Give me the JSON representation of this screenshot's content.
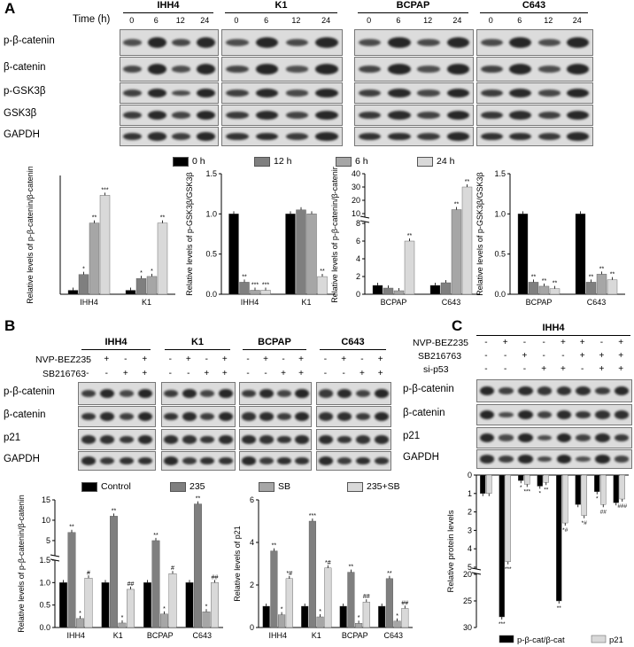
{
  "panelA": {
    "letter": "A",
    "time_label": "Time (h)",
    "cell_lines": [
      "IHH4",
      "K1",
      "BCPAP",
      "C643"
    ],
    "times": [
      "0",
      "6",
      "12",
      "24"
    ],
    "rows": [
      "p-β-catenin",
      "β-catenin",
      "p-GSK3β",
      "GSK3β",
      "GAPDH"
    ],
    "legend": [
      {
        "label": "0 h",
        "color": "#000000"
      },
      {
        "label": "12 h",
        "color": "#7f7f7f"
      },
      {
        "label": "6 h",
        "color": "#a6a6a6"
      },
      {
        "label": "24 h",
        "color": "#d9d9d9"
      }
    ]
  },
  "panelB": {
    "letter": "B",
    "cell_lines": [
      "IHH4",
      "K1",
      "BCPAP",
      "C643"
    ],
    "treat_rows": [
      {
        "label": "NVP-BEZ235",
        "signs": [
          "-",
          "+",
          "-",
          "+"
        ]
      },
      {
        "label": "SB216763",
        "signs": [
          "-",
          "-",
          "+",
          "+"
        ]
      }
    ],
    "rows": [
      "p-β-catenin",
      "β-catenin",
      "p21",
      "GAPDH"
    ],
    "legend": [
      {
        "label": "Control",
        "color": "#000000"
      },
      {
        "label": "235",
        "color": "#7f7f7f"
      },
      {
        "label": "SB",
        "color": "#a6a6a6"
      },
      {
        "label": "235+SB",
        "color": "#d9d9d9"
      }
    ]
  },
  "panelC": {
    "letter": "C",
    "cell_line": "IHH4",
    "treat_rows": [
      {
        "label": "NVP-BEZ235",
        "signs": [
          "-",
          "+",
          "-",
          "-",
          "+",
          "+",
          "-",
          "+"
        ]
      },
      {
        "label": "SB216763",
        "signs": [
          "-",
          "-",
          "+",
          "-",
          "-",
          "+",
          "+",
          "+"
        ]
      },
      {
        "label": "si-p53",
        "signs": [
          "-",
          "-",
          "-",
          "+",
          "+",
          "-",
          "+",
          "+"
        ]
      }
    ],
    "rows": [
      "p-β-catenin",
      "β-catenin",
      "p21",
      "GAPDH"
    ],
    "legend": [
      {
        "label": "p-β-cat/β-cat",
        "color": "#000000"
      },
      {
        "label": "p21",
        "color": "#d9d9d9"
      }
    ]
  },
  "chart_data": [
    {
      "id": "A1",
      "type": "bar",
      "ylabel": "Relative levels of p-β-catenin/β-catenin",
      "categories": [
        "IHH4",
        "K1"
      ],
      "series_colors": [
        "#000000",
        "#7f7f7f",
        "#a6a6a6",
        "#d9d9d9"
      ],
      "values": [
        [
          1,
          5,
          18,
          25
        ],
        [
          1,
          4,
          4.5,
          18
        ]
      ],
      "annotations": [
        [
          "",
          "*",
          "**",
          "***"
        ],
        [
          "",
          "*",
          "*",
          "**"
        ]
      ]
    },
    {
      "id": "A2",
      "type": "bar",
      "ylabel": "Relative levels of p-GSK3β/GSK3β",
      "ylim": [
        0.0,
        1.5
      ],
      "yticks": [
        "0.0",
        "0.5",
        "1.0",
        "1.5"
      ],
      "categories": [
        "IHH4",
        "K1"
      ],
      "series_colors": [
        "#000000",
        "#7f7f7f",
        "#a6a6a6",
        "#d9d9d9"
      ],
      "values": [
        [
          1.0,
          0.15,
          0.05,
          0.05
        ],
        [
          1.0,
          1.05,
          1.0,
          0.22
        ]
      ],
      "annotations": [
        [
          "",
          "**",
          "***",
          "***"
        ],
        [
          "",
          "",
          "",
          "**"
        ]
      ]
    },
    {
      "id": "A3",
      "type": "bar",
      "broken_axis": true,
      "ylabel": "Relative levels of p-β-catenin/β-catenin",
      "yticks_lower": [
        "0",
        "2",
        "4",
        "6",
        "8"
      ],
      "yticks_upper": [
        "10",
        "20",
        "30",
        "40"
      ],
      "categories": [
        "BCPAP",
        "C643"
      ],
      "series_colors": [
        "#000000",
        "#7f7f7f",
        "#a6a6a6",
        "#d9d9d9"
      ],
      "values": [
        [
          1,
          0.7,
          0.4,
          6
        ],
        [
          1,
          1.3,
          13,
          30
        ]
      ],
      "annotations": [
        [
          "",
          "",
          "",
          "**"
        ],
        [
          "",
          "",
          "**",
          "**"
        ]
      ]
    },
    {
      "id": "A4",
      "type": "bar",
      "ylabel": "Relative levels of p-GSK3β/GSK3β",
      "ylim": [
        0.0,
        1.5
      ],
      "yticks": [
        "0.0",
        "0.5",
        "1.0",
        "1.5"
      ],
      "categories": [
        "BCPAP",
        "C643"
      ],
      "series_colors": [
        "#000000",
        "#7f7f7f",
        "#a6a6a6",
        "#d9d9d9"
      ],
      "values": [
        [
          1.0,
          0.15,
          0.1,
          0.07
        ],
        [
          1.0,
          0.15,
          0.25,
          0.18
        ]
      ],
      "annotations": [
        [
          "",
          "**",
          "**",
          "**"
        ],
        [
          "",
          "**",
          "**",
          "**"
        ]
      ]
    },
    {
      "id": "B1",
      "type": "bar",
      "broken_axis": true,
      "ylabel": "Relative levels of p-β-catenin/β-catenin",
      "yticks_lower": [
        "0.0",
        "0.5",
        "1.0",
        "1.5"
      ],
      "yticks_upper": [
        "5",
        "10",
        "15"
      ],
      "categories": [
        "IHH4",
        "K1",
        "BCPAP",
        "C643"
      ],
      "series_colors": [
        "#000000",
        "#7f7f7f",
        "#a6a6a6",
        "#d9d9d9"
      ],
      "values": [
        [
          1,
          7,
          0.2,
          1.1
        ],
        [
          1,
          11,
          0.1,
          0.85
        ],
        [
          1,
          5,
          0.3,
          1.2
        ],
        [
          1,
          14,
          0.35,
          1.0
        ]
      ],
      "annotations": [
        [
          "",
          "**",
          "*",
          "#"
        ],
        [
          "",
          "**",
          "*",
          "##"
        ],
        [
          "",
          "**",
          "*",
          "#"
        ],
        [
          "",
          "**",
          "*",
          "##"
        ]
      ]
    },
    {
      "id": "B2",
      "type": "bar",
      "ylabel": "Relative levels of p21",
      "ylim": [
        0,
        6
      ],
      "yticks": [
        "0",
        "2",
        "4",
        "6"
      ],
      "categories": [
        "IHH4",
        "K1",
        "BCPAP",
        "C643"
      ],
      "series_colors": [
        "#000000",
        "#7f7f7f",
        "#a6a6a6",
        "#d9d9d9"
      ],
      "values": [
        [
          1,
          3.6,
          0.6,
          2.3
        ],
        [
          1,
          5.0,
          0.5,
          2.8
        ],
        [
          1,
          2.6,
          0.2,
          1.2
        ],
        [
          1,
          2.3,
          0.3,
          0.9
        ]
      ],
      "annotations": [
        [
          "",
          "**",
          "*",
          "*#"
        ],
        [
          "",
          "***",
          "*",
          "*#"
        ],
        [
          "",
          "**",
          "*",
          "##"
        ],
        [
          "",
          "**",
          "*",
          "##"
        ]
      ]
    },
    {
      "id": "C1",
      "type": "bar",
      "inverted_axis": true,
      "broken_axis": true,
      "ylabel": "Relative protein levels",
      "yticks_upper": [
        "0",
        "1",
        "2",
        "3",
        "4",
        "5"
      ],
      "yticks_lower": [
        "20",
        "25",
        "30"
      ],
      "x": [
        "1",
        "2",
        "3",
        "4",
        "5",
        "6",
        "7",
        "8"
      ],
      "series": [
        {
          "name": "p-β-cat/β-cat",
          "color": "#000000",
          "values": [
            1,
            28,
            0.3,
            0.6,
            25,
            1.6,
            0.9,
            1.5
          ]
        },
        {
          "name": "p21",
          "color": "#d9d9d9",
          "values": [
            1,
            4.7,
            0.5,
            0.4,
            2.6,
            2.2,
            1.6,
            1.3
          ]
        }
      ],
      "annotations": [
        [
          "",
          "***",
          "*",
          "*",
          "**",
          "",
          "*",
          ""
        ],
        [
          "",
          "***",
          "***",
          "**",
          "*#",
          "*#",
          "##",
          "###"
        ]
      ]
    }
  ]
}
